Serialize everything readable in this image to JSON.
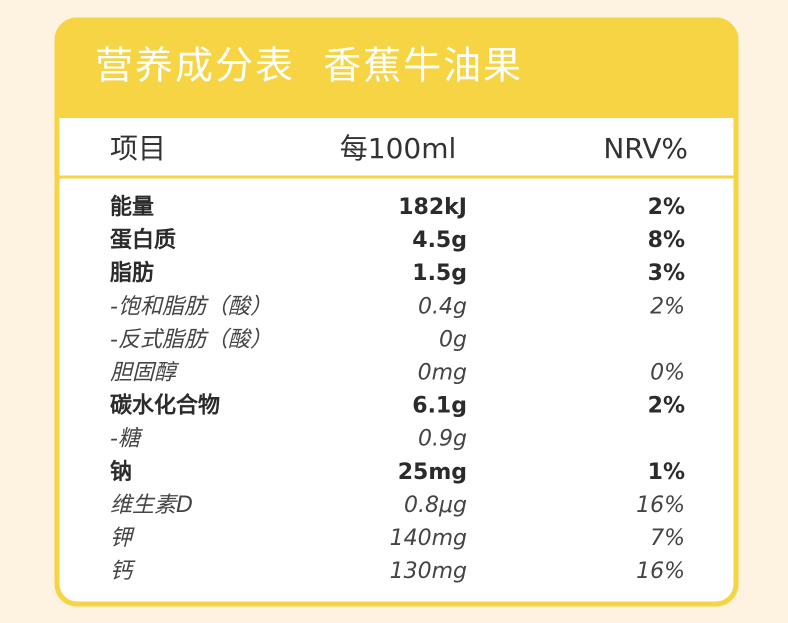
{
  "header": {
    "title": "营养成分表  香蕉牛油果"
  },
  "table": {
    "columns": [
      "项目",
      "每100ml",
      "NRV%"
    ],
    "rows": [
      [
        "能量",
        "182kJ",
        "2%"
      ],
      [
        "蛋白质",
        "4.5g",
        "8%"
      ],
      [
        "脂肪",
        "1.5g",
        "3%"
      ],
      [
        "-饱和脂肪（酸）",
        "0.4g",
        "2%"
      ],
      [
        "-反式脂肪（酸）",
        "0g"
      ],
      [
        "胆固醇",
        "0mg",
        "0%"
      ],
      [
        "碳水化合物",
        "6.1g",
        "2%"
      ],
      [
        "-糖",
        "0.9g"
      ],
      [
        "钠",
        "25mg",
        "1%"
      ],
      [
        "维生素D",
        "0.8μg",
        "16%"
      ],
      [
        "钾",
        "140mg",
        "7%"
      ],
      [
        "钙",
        "130mg",
        "16%"
      ]
    ]
  }
}
